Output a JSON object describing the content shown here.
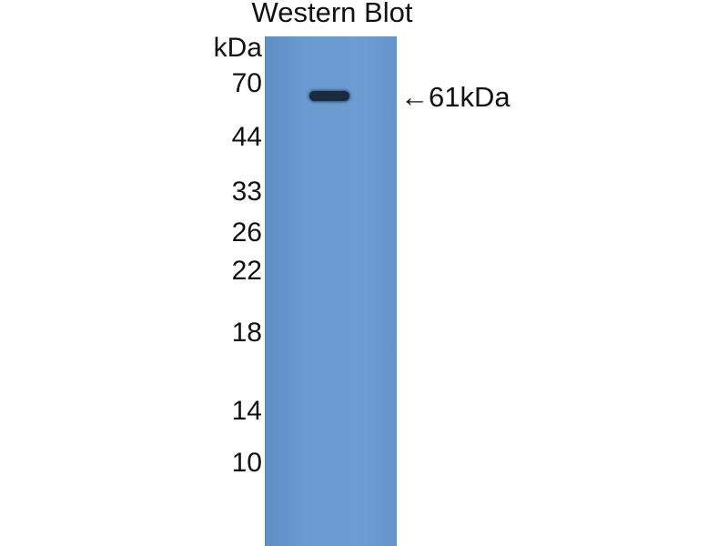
{
  "title": "Western Blot",
  "unit_label": "kDa",
  "markers": [
    "70",
    "44",
    "33",
    "26",
    "22",
    "18",
    "14",
    "10"
  ],
  "band_annotation": "←61kDa",
  "colors": {
    "membrane": "#6a9bd0",
    "band": "#1a2a40"
  }
}
